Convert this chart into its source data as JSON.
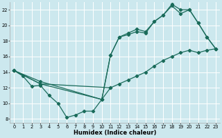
{
  "xlabel": "Humidex (Indice chaleur)",
  "bg_color": "#cce8ee",
  "grid_color": "#ffffff",
  "line_color": "#1a6b5a",
  "xlim": [
    -0.5,
    23.5
  ],
  "ylim": [
    7.5,
    23.0
  ],
  "xticks": [
    0,
    1,
    2,
    3,
    4,
    5,
    6,
    7,
    8,
    9,
    10,
    11,
    12,
    13,
    14,
    15,
    16,
    17,
    18,
    19,
    20,
    21,
    22,
    23
  ],
  "yticks": [
    8,
    10,
    12,
    14,
    16,
    18,
    20,
    22
  ],
  "curve1_x": [
    0,
    1,
    2,
    3,
    4,
    5,
    6,
    7,
    8,
    9,
    10,
    11
  ],
  "curve1_y": [
    14.2,
    13.5,
    12.2,
    12.3,
    11.0,
    10.0,
    8.2,
    8.5,
    9.0,
    9.0,
    10.5,
    12.0
  ],
  "curve2_x": [
    0,
    3,
    10,
    11,
    12,
    13,
    14,
    15,
    16,
    17,
    18,
    19,
    20,
    21,
    22,
    23
  ],
  "curve2_y": [
    14.2,
    12.5,
    10.5,
    16.2,
    18.5,
    19.0,
    19.5,
    19.2,
    20.5,
    21.3,
    22.7,
    22.0,
    22.0,
    20.3,
    18.5,
    17.0
  ],
  "curve3_x": [
    0,
    3,
    10,
    11,
    12,
    13,
    14,
    15,
    16,
    17,
    18,
    19,
    20,
    21,
    22,
    23
  ],
  "curve3_y": [
    14.2,
    12.8,
    10.5,
    16.2,
    18.5,
    18.8,
    19.2,
    19.0,
    20.5,
    21.3,
    22.5,
    21.5,
    22.0,
    20.3,
    18.5,
    17.0
  ],
  "curve4_x": [
    0,
    3,
    11,
    12,
    13,
    14,
    15,
    16,
    17,
    18,
    19,
    20,
    21,
    22,
    23
  ],
  "curve4_y": [
    14.2,
    12.5,
    12.0,
    12.5,
    13.0,
    13.5,
    14.0,
    14.8,
    15.5,
    16.0,
    16.5,
    16.8,
    16.5,
    16.8,
    17.0
  ],
  "xlabel_fontsize": 6.0,
  "tick_fontsize": 4.8,
  "lw": 0.9,
  "ms": 2.2
}
